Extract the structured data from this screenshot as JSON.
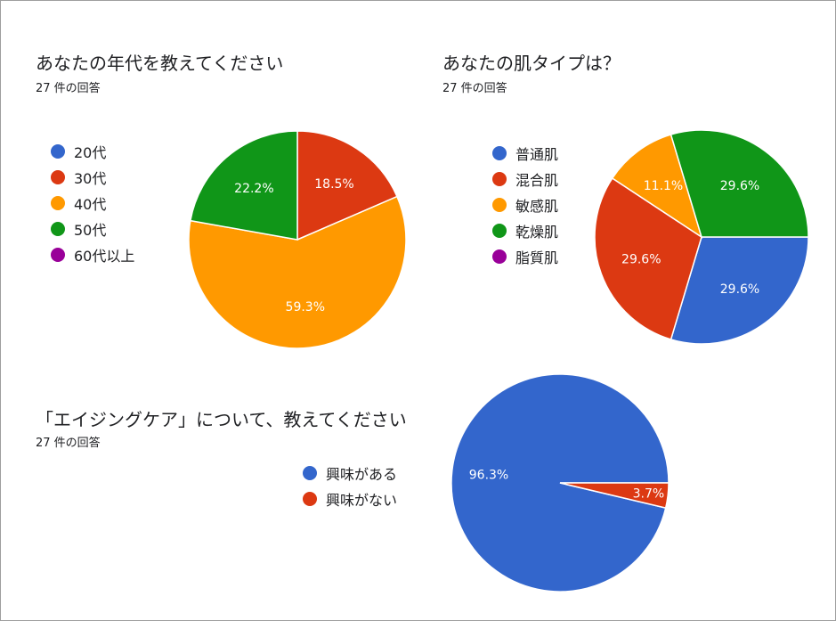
{
  "chart_data": [
    {
      "type": "pie",
      "title": "あなたの年代を教えてください",
      "subtitle": "27 件の回答",
      "legend_position": "left",
      "categories": [
        "20代",
        "30代",
        "40代",
        "50代",
        "60代以上"
      ],
      "values": [
        0,
        18.5,
        59.3,
        22.2,
        0
      ],
      "labels": [
        "",
        "18.5%",
        "59.3%",
        "22.2%",
        ""
      ],
      "colors": [
        "#3366cc",
        "#dc3912",
        "#ff9900",
        "#109618",
        "#990099"
      ]
    },
    {
      "type": "pie",
      "title": "あなたの肌タイプは？",
      "subtitle": "27 件の回答",
      "legend_position": "left",
      "categories": [
        "普通肌",
        "混合肌",
        "敏感肌",
        "乾燥肌",
        "脂質肌"
      ],
      "values": [
        29.6,
        29.6,
        11.1,
        29.6,
        0
      ],
      "labels": [
        "29.6%",
        "29.6%",
        "11.1%",
        "29.6%",
        ""
      ],
      "colors": [
        "#3366cc",
        "#dc3912",
        "#ff9900",
        "#109618",
        "#990099"
      ]
    },
    {
      "type": "pie",
      "title": "「エイジングケア」について、教えてください",
      "subtitle": "27 件の回答",
      "legend_position": "left",
      "categories": [
        "興味がある",
        "興味がない"
      ],
      "values": [
        96.3,
        3.7
      ],
      "labels": [
        "96.3%",
        "3.7%"
      ],
      "colors": [
        "#3366cc",
        "#dc3912"
      ]
    }
  ]
}
